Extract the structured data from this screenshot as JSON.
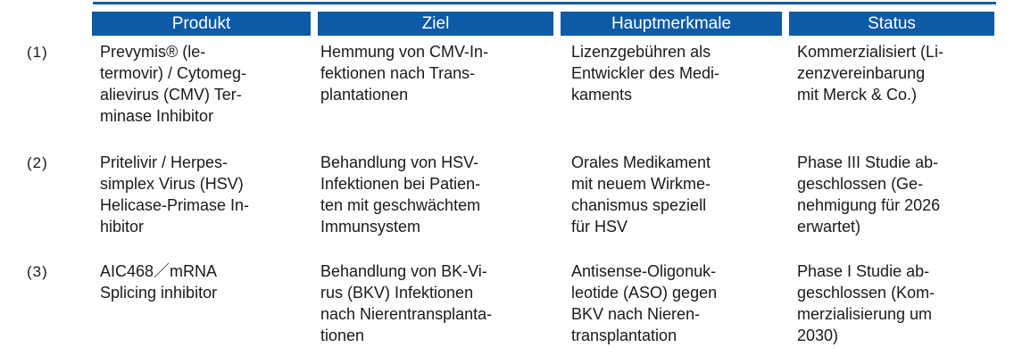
{
  "colors": {
    "header_bg": "#0d5aa6",
    "header_text": "#ffffff",
    "body_text": "#1a1a1a"
  },
  "table": {
    "headers": [
      {
        "label": "Produkt"
      },
      {
        "label": "Ziel"
      },
      {
        "label": "Hauptmerkmale"
      },
      {
        "label": "Status"
      }
    ],
    "rows": [
      {
        "num": "(1)",
        "produkt": "Prevymis® (le-\ntermovir) / Cytomeg-\nalievirus (CMV) Ter-\nminase Inhibitor",
        "ziel": "Hemmung von CMV-In-\nfektionen nach Trans-\nplantationen",
        "hauptmerkmale": "Lizenzgebühren als\nEntwickler des Medi-\nkaments",
        "status": "Kommerzialisiert (Li-\nzenzvereinbarung\nmit Merck & Co.)"
      },
      {
        "num": "(2)",
        "produkt": "Pritelivir / Herpes-\nsimplex Virus (HSV)\nHelicase-Primase In-\nhibitor",
        "ziel": "Behandlung von HSV-\nInfektionen bei Patien-\nten mit geschwächtem\nImmunsystem",
        "hauptmerkmale": "Orales Medikament\nmit neuem Wirkme-\nchanismus speziell\nfür HSV",
        "status": "Phase III Studie ab-\ngeschlossen (Ge-\nnehmigung für 2026\nerwartet)"
      },
      {
        "num": "(3)",
        "produkt": "AIC468／mRNA\nSplicing inhibitor",
        "ziel": "Behandlung von BK-Vi-\nrus (BKV) Infektionen\nnach Nierentransplanta-\ntionen",
        "hauptmerkmale": "Antisense-Oligonuk-\nleotide (ASO) gegen\nBKV nach Nieren-\ntransplantation",
        "status": "Phase I Studie ab-\ngeschlossen (Kom-\nmerzialisierung um\n2030)"
      }
    ]
  }
}
